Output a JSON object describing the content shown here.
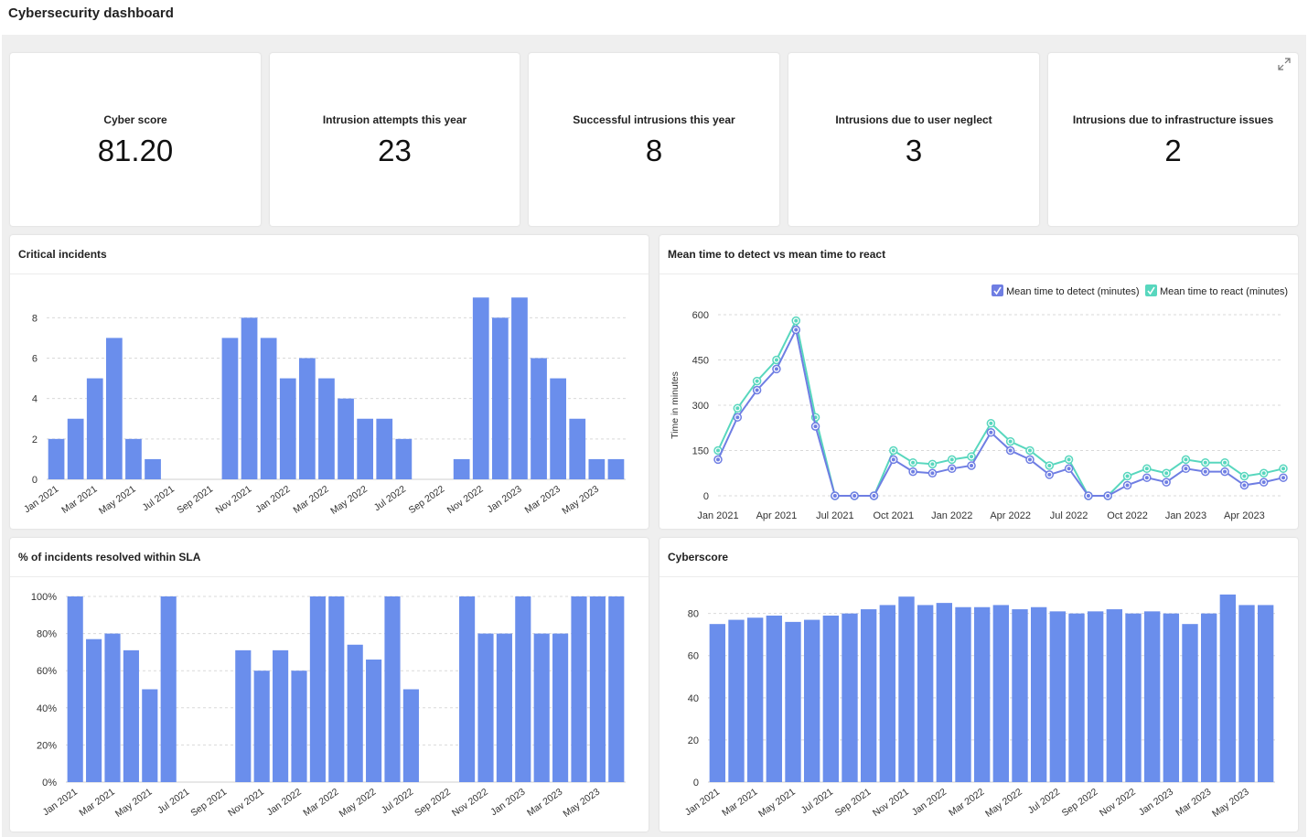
{
  "header": {
    "title": "Cybersecurity dashboard"
  },
  "colors": {
    "bar": "#6a8eec",
    "detect": "#6f7ee3",
    "react": "#58d7be",
    "grid": "#d9d9d9",
    "axis_text": "#333"
  },
  "kpis": [
    {
      "label": "Cyber score",
      "value": "81.20"
    },
    {
      "label": "Intrusion attempts this year",
      "value": "23"
    },
    {
      "label": "Successful intrusions this year",
      "value": "8"
    },
    {
      "label": "Intrusions due to user neglect",
      "value": "3"
    },
    {
      "label": "Intrusions due to infrastructure issues",
      "value": "2"
    }
  ],
  "icons": {
    "expand": "expand-icon"
  },
  "panels": {
    "critical": {
      "title": "Critical incidents"
    },
    "mttd": {
      "title": "Mean time to detect vs mean time to react"
    },
    "sla": {
      "title": "% of incidents resolved within SLA"
    },
    "cyberscore": {
      "title": "Cyberscore"
    }
  },
  "chart_data": [
    {
      "id": "critical",
      "type": "bar",
      "categories": [
        "Jan 2021",
        "Feb 2021",
        "Mar 2021",
        "Apr 2021",
        "May 2021",
        "Jun 2021",
        "Jul 2021",
        "Aug 2021",
        "Sep 2021",
        "Oct 2021",
        "Nov 2021",
        "Dec 2021",
        "Jan 2022",
        "Feb 2022",
        "Mar 2022",
        "Apr 2022",
        "May 2022",
        "Jun 2022",
        "Jul 2022",
        "Aug 2022",
        "Sep 2022",
        "Oct 2022",
        "Nov 2022",
        "Dec 2022",
        "Jan 2023",
        "Feb 2023",
        "Mar 2023",
        "Apr 2023",
        "May 2023",
        "Jun 2023"
      ],
      "tick_labels": [
        "Jan 2021",
        "Mar 2021",
        "May 2021",
        "Jul 2021",
        "Sep 2021",
        "Nov 2021",
        "Jan 2022",
        "Mar 2022",
        "May 2022",
        "Jul 2022",
        "Sep 2022",
        "Nov 2022",
        "Jan 2023",
        "Mar 2023",
        "May 2023"
      ],
      "values": [
        2,
        3,
        5,
        7,
        2,
        1,
        0,
        0,
        0,
        7,
        8,
        7,
        5,
        6,
        5,
        4,
        3,
        3,
        2,
        0,
        0,
        1,
        9,
        8,
        9,
        6,
        5,
        3,
        1,
        1
      ],
      "yticks": [
        0,
        2,
        4,
        6,
        8
      ],
      "ylim": [
        0,
        9.6
      ],
      "grid": true
    },
    {
      "id": "mttd",
      "type": "line",
      "x": [
        "Jan 2021",
        "Feb 2021",
        "Mar 2021",
        "Apr 2021",
        "May 2021",
        "Jun 2021",
        "Jul 2021",
        "Aug 2021",
        "Sep 2021",
        "Oct 2021",
        "Nov 2021",
        "Dec 2021",
        "Jan 2022",
        "Feb 2022",
        "Mar 2022",
        "Apr 2022",
        "May 2022",
        "Jun 2022",
        "Jul 2022",
        "Aug 2022",
        "Sep 2022",
        "Oct 2022",
        "Nov 2022",
        "Dec 2022",
        "Jan 2023",
        "Feb 2023",
        "Mar 2023",
        "Apr 2023",
        "May 2023",
        "Jun 2023"
      ],
      "tick_labels": [
        "Jan 2021",
        "Apr 2021",
        "Jul 2021",
        "Oct 2021",
        "Jan 2022",
        "Apr 2022",
        "Jul 2022",
        "Oct 2022",
        "Jan 2023",
        "Apr 2023"
      ],
      "series": [
        {
          "name": "Mean time to detect (minutes)",
          "values": [
            120,
            260,
            350,
            420,
            550,
            230,
            0,
            0,
            0,
            120,
            80,
            75,
            90,
            100,
            210,
            150,
            120,
            70,
            90,
            0,
            0,
            35,
            60,
            45,
            90,
            80,
            80,
            35,
            45,
            60
          ]
        },
        {
          "name": "Mean time to react (minutes)",
          "values": [
            150,
            290,
            380,
            450,
            580,
            260,
            0,
            0,
            0,
            150,
            110,
            105,
            120,
            130,
            240,
            180,
            150,
            100,
            120,
            0,
            0,
            65,
            90,
            75,
            120,
            110,
            110,
            65,
            75,
            90
          ]
        }
      ],
      "ylabel": "Time in minutes",
      "yticks": [
        0,
        150,
        300,
        450,
        600
      ],
      "ylim": [
        0,
        600
      ],
      "legend": "top-right",
      "grid": true
    },
    {
      "id": "sla",
      "type": "bar",
      "categories": [
        "Jan 2021",
        "Feb 2021",
        "Mar 2021",
        "Apr 2021",
        "May 2021",
        "Jun 2021",
        "Jul 2021",
        "Aug 2021",
        "Sep 2021",
        "Oct 2021",
        "Nov 2021",
        "Dec 2021",
        "Jan 2022",
        "Feb 2022",
        "Mar 2022",
        "Apr 2022",
        "May 2022",
        "Jun 2022",
        "Jul 2022",
        "Aug 2022",
        "Sep 2022",
        "Oct 2022",
        "Nov 2022",
        "Dec 2022",
        "Jan 2023",
        "Feb 2023",
        "Mar 2023",
        "Apr 2023",
        "May 2023",
        "Jun 2023"
      ],
      "tick_labels": [
        "Jan 2021",
        "Mar 2021",
        "May 2021",
        "Jul 2021",
        "Sep 2021",
        "Nov 2021",
        "Jan 2022",
        "Mar 2022",
        "May 2022",
        "Jul 2022",
        "Sep 2022",
        "Nov 2022",
        "Jan 2023",
        "Mar 2023",
        "May 2023"
      ],
      "values": [
        100,
        77,
        80,
        71,
        50,
        100,
        0,
        0,
        0,
        71,
        60,
        71,
        60,
        100,
        100,
        74,
        66,
        100,
        50,
        0,
        0,
        100,
        80,
        80,
        100,
        80,
        80,
        100,
        100,
        100
      ],
      "yticks": [
        0,
        20,
        40,
        60,
        80,
        100
      ],
      "ytick_labels": [
        "0%",
        "20%",
        "40%",
        "60%",
        "80%",
        "100%"
      ],
      "ylim": [
        0,
        100
      ],
      "grid": true
    },
    {
      "id": "cyberscore",
      "type": "bar",
      "categories": [
        "Jan 2021",
        "Feb 2021",
        "Mar 2021",
        "Apr 2021",
        "May 2021",
        "Jun 2021",
        "Jul 2021",
        "Aug 2021",
        "Sep 2021",
        "Oct 2021",
        "Nov 2021",
        "Dec 2021",
        "Jan 2022",
        "Feb 2022",
        "Mar 2022",
        "Apr 2022",
        "May 2022",
        "Jun 2022",
        "Jul 2022",
        "Aug 2022",
        "Sep 2022",
        "Oct 2022",
        "Nov 2022",
        "Dec 2022",
        "Jan 2023",
        "Feb 2023",
        "Mar 2023",
        "Apr 2023",
        "May 2023",
        "Jun 2023"
      ],
      "tick_labels": [
        "Jan 2021",
        "Mar 2021",
        "May 2021",
        "Jul 2021",
        "Sep 2021",
        "Nov 2021",
        "Jan 2022",
        "Mar 2022",
        "May 2022",
        "Jul 2022",
        "Sep 2022",
        "Nov 2022",
        "Jan 2023",
        "Mar 2023",
        "May 2023"
      ],
      "values": [
        75,
        77,
        78,
        79,
        76,
        77,
        79,
        80,
        82,
        84,
        88,
        84,
        85,
        83,
        83,
        84,
        82,
        83,
        81,
        80,
        81,
        82,
        80,
        81,
        80,
        75,
        80,
        89,
        84,
        84
      ],
      "yticks": [
        0,
        20,
        40,
        60,
        80
      ],
      "ylim": [
        0,
        92
      ],
      "grid": true
    }
  ]
}
